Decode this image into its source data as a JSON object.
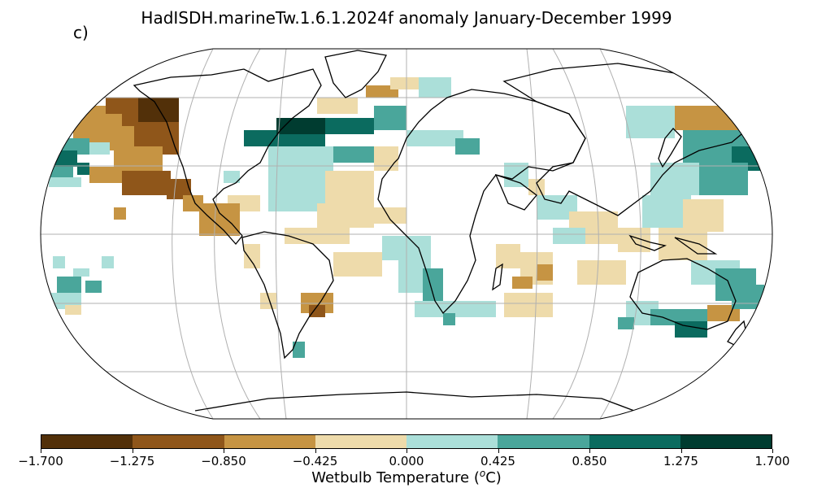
{
  "title": "HadISDH.marineTw.1.6.1.2024f anomaly January-December 1999",
  "panel_label": "c)",
  "colorbar": {
    "label_text": "Wetbulb Temperature (",
    "label_sup": "o",
    "label_unit": "C)",
    "ticks": [
      "−1.700",
      "−1.275",
      "−0.850",
      "−0.425",
      "0.000",
      "0.425",
      "0.850",
      "1.275",
      "1.700"
    ],
    "colors": [
      "#523009",
      "#8f561a",
      "#c69443",
      "#eedbab",
      "#abdfd9",
      "#4aa69b",
      "#0b6b5f",
      "#003c30"
    ]
  },
  "map": {
    "projection": "Robinson",
    "graticule": true,
    "coastlines": true,
    "colors": {
      "c0": "#523009",
      "c1": "#8f561a",
      "c2": "#c69443",
      "c3": "#eedbab",
      "c4": "#abdfd9",
      "c5": "#4aa69b",
      "c6": "#0b6b5f",
      "c7": "#003c30"
    }
  }
}
